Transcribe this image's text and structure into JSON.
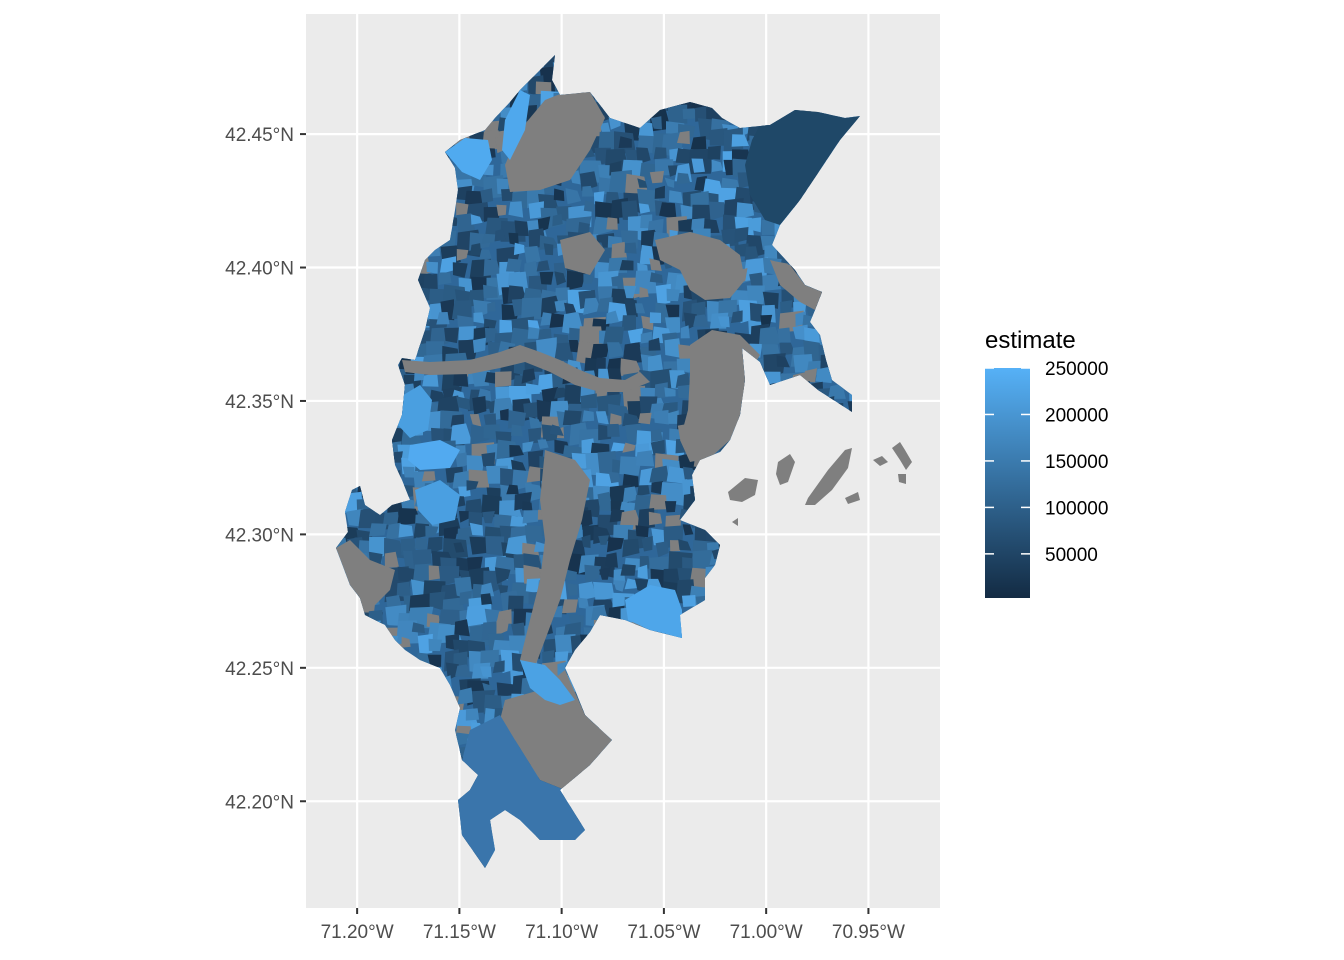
{
  "chart_data": {
    "type": "choropleth",
    "fill_variable": "estimate",
    "missing_value_color": "#7f7f7f",
    "panel_background": "#ebebeb",
    "grid_color": "#ffffff",
    "x_axis": {
      "range": [
        -71.225,
        -70.915
      ],
      "ticks": [
        {
          "value": -71.2,
          "label": "71.20°W"
        },
        {
          "value": -71.15,
          "label": "71.15°W"
        },
        {
          "value": -71.1,
          "label": "71.10°W"
        },
        {
          "value": -71.05,
          "label": "71.05°W"
        },
        {
          "value": -71.0,
          "label": "71.00°W"
        },
        {
          "value": -70.95,
          "label": "70.95°W"
        }
      ]
    },
    "y_axis": {
      "range": [
        42.16,
        42.495
      ],
      "ticks": [
        {
          "value": 42.2,
          "label": "42.20°N"
        },
        {
          "value": 42.25,
          "label": "42.25°N"
        },
        {
          "value": 42.3,
          "label": "42.30°N"
        },
        {
          "value": 42.35,
          "label": "42.35°N"
        },
        {
          "value": 42.4,
          "label": "42.40°N"
        },
        {
          "value": 42.45,
          "label": "42.45°N"
        }
      ]
    },
    "legend": {
      "title": "estimate",
      "position": "right",
      "range": [
        2500,
        250000
      ],
      "low_color": "#132B43",
      "high_color": "#56B1F7",
      "breaks": [
        {
          "value": 250000,
          "label": "250000"
        },
        {
          "value": 200000,
          "label": "200000"
        },
        {
          "value": 150000,
          "label": "150000"
        },
        {
          "value": 100000,
          "label": "100000"
        },
        {
          "value": 50000,
          "label": "50000"
        }
      ]
    }
  }
}
